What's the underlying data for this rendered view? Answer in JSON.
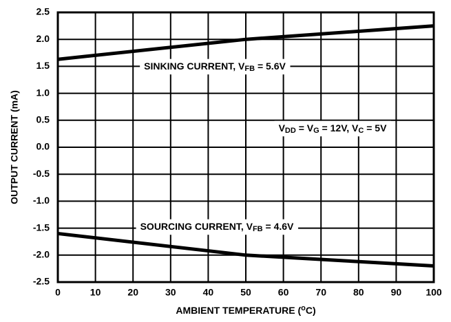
{
  "chart_data": {
    "type": "line",
    "x_label": {
      "segments": [
        "AMBIENT TEMPERATURE (",
        "o",
        "C)"
      ],
      "script": "super"
    },
    "y_label": "OUTPUT CURRENT (mA)",
    "x": [
      0,
      50,
      100
    ],
    "series": [
      {
        "name": "sinking",
        "color": "#000000",
        "values": [
          1.63,
          2.0,
          2.25
        ]
      },
      {
        "name": "sourcing",
        "color": "#000000",
        "values": [
          -1.6,
          -2.0,
          -2.2
        ]
      }
    ],
    "annotations": [
      {
        "segments": [
          "SINKING CURRENT, V",
          "FB",
          " = 5.6V"
        ],
        "script": "sub"
      },
      {
        "segments": [
          "V",
          "DD",
          " = V",
          "G",
          " = 12V, V",
          "C",
          " = 5V"
        ],
        "script": "sub"
      },
      {
        "segments": [
          "SOURCING CURRENT, V",
          "FB",
          " = 4.6V"
        ],
        "script": "sub"
      }
    ],
    "xlim": [
      0,
      100
    ],
    "xticks": [
      0,
      10,
      20,
      30,
      40,
      50,
      60,
      70,
      80,
      90,
      100
    ],
    "ylim": [
      -2.5,
      2.5
    ],
    "yticks": [
      {
        "value": -2.5,
        "label": "-2.5"
      },
      {
        "value": -2,
        "label": "-2.0"
      },
      -1.5,
      {
        "value": -1,
        "label": "-1.0"
      },
      -0.5,
      {
        "value": 0,
        "label": "0.0"
      },
      0.5,
      {
        "value": 1,
        "label": "1.0"
      },
      1.5,
      {
        "value": 2,
        "label": "2.0"
      },
      2.5
    ],
    "grid": true
  }
}
